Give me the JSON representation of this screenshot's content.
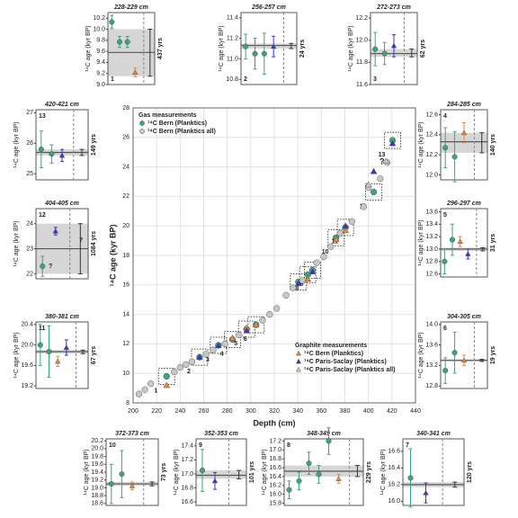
{
  "chart_data": [
    {
      "type": "scatter",
      "xlabel": "Depth (cm)",
      "ylabel": "¹⁴C age (kyr BP)",
      "xlim": [
        200,
        440
      ],
      "ylim": [
        8,
        28
      ],
      "xticks": [
        200,
        220,
        240,
        260,
        280,
        300,
        320,
        340,
        360,
        380,
        400,
        420,
        440
      ],
      "yticks": [
        8,
        10,
        12,
        14,
        16,
        18,
        20,
        22,
        24,
        26,
        28
      ],
      "grid": true,
      "legend_titles": {
        "gas": "Gas measurements",
        "graphite": "Graphite measurements"
      },
      "annotations": [
        "?"
      ],
      "series": [
        {
          "name": "¹⁴C Bern (Planktics)",
          "group": "gas",
          "marker": "circle",
          "color": "#3aa57a",
          "x": [
            228.5,
            256.5,
            272.5,
            284.5,
            296.5,
            304.5,
            340.5,
            348.5,
            352.5,
            372.5,
            380.5,
            404.5,
            420.5
          ],
          "y": [
            9.8,
            11.1,
            11.9,
            12.3,
            13.0,
            13.3,
            16.2,
            16.7,
            17.0,
            19.2,
            19.9,
            22.3,
            25.8
          ],
          "point_labels": [
            "1",
            "2",
            "3",
            "4",
            "5",
            "6",
            "7",
            "8",
            "9",
            "10",
            "11",
            "12",
            "13"
          ]
        },
        {
          "name": "¹⁴C Bern (Planktics all)",
          "group": "gas",
          "marker": "circle",
          "color": "#c8c8c8",
          "x": [
            205,
            210,
            215,
            235,
            240,
            245,
            250,
            262,
            268,
            278,
            290,
            310,
            316,
            322,
            330,
            336,
            344,
            356,
            362,
            368,
            376,
            386,
            396,
            400,
            410,
            416
          ],
          "y": [
            8.6,
            8.9,
            9.3,
            10.1,
            10.4,
            10.6,
            10.8,
            11.3,
            11.6,
            12.0,
            12.6,
            13.6,
            14.0,
            14.4,
            15.3,
            15.8,
            16.3,
            17.5,
            17.9,
            18.6,
            19.5,
            20.3,
            21.3,
            22.6,
            23.2,
            24.3
          ]
        },
        {
          "name": "¹⁴C Bern (Planktics)",
          "group": "graphite",
          "marker": "triangle",
          "color": "#e8883a",
          "x": [
            228.5,
            284.5,
            296.5,
            304.5,
            348.5,
            372.5,
            380.5
          ],
          "y": [
            9.2,
            12.4,
            13.1,
            13.3,
            16.4,
            19.1,
            19.7
          ]
        },
        {
          "name": "¹⁴C Paris-Saclay (Planktics)",
          "group": "graphite",
          "marker": "triangle",
          "color": "#3535d0",
          "x": [
            256.5,
            272.5,
            296.5,
            340.5,
            352.5,
            380.5,
            404.5,
            420.5
          ],
          "y": [
            11.1,
            11.9,
            12.9,
            16.1,
            16.9,
            20.0,
            23.7,
            25.6
          ]
        },
        {
          "name": "¹⁴C Paris-Saclay (Planktics all)",
          "group": "graphite",
          "marker": "triangle",
          "color": "#c8c8c8",
          "x": [
            400,
            415
          ],
          "y": [
            22.8,
            24.4
          ]
        }
      ]
    },
    {
      "type": "dotplot",
      "title": "228-229 cm",
      "number": "1",
      "ylabel": "¹⁴C age (kyr BP)",
      "span_label": "437 yrs",
      "ylim": [
        9.0,
        10.3
      ],
      "yticks": [
        {
          "value": 9.0,
          "label": "9.0"
        },
        9.2,
        9.4,
        9.6,
        9.8,
        {
          "value": 10.0,
          "label": "10.0"
        },
        10.2
      ],
      "band": [
        9.15,
        10.0
      ],
      "mean": 9.58,
      "points": [
        {
          "value": 10.13,
          "error": 0.12,
          "color": "#3aa57a",
          "marker": "circle"
        },
        {
          "value": 9.77,
          "error": 0.1,
          "color": "#3aa57a",
          "marker": "circle"
        },
        {
          "value": 9.77,
          "error": 0.1,
          "color": "#3aa57a",
          "marker": "circle"
        },
        {
          "value": 9.22,
          "error": 0.08,
          "color": "#e8883a",
          "marker": "triangle"
        }
      ]
    },
    {
      "type": "dotplot",
      "title": "256-257 cm",
      "number": "2",
      "ylabel": "¹⁴C age (kyr BP)",
      "span_label": "24 yrs",
      "ylim": [
        10.75,
        11.45
      ],
      "yticks": [
        10.8,
        {
          "value": 11.0,
          "label": "11.0"
        },
        11.2,
        11.4
      ],
      "band": [
        11.1,
        11.15
      ],
      "mean": 11.13,
      "points": [
        {
          "value": 11.12,
          "error": 0.12,
          "color": "#3aa57a",
          "marker": "circle"
        },
        {
          "value": 11.05,
          "error": 0.15,
          "color": "#3aa57a",
          "marker": "circle"
        },
        {
          "value": 11.05,
          "error": 0.2,
          "color": "#3aa57a",
          "marker": "circle"
        },
        {
          "value": 11.12,
          "error": 0.1,
          "color": "#3535d0",
          "marker": "triangle"
        }
      ]
    },
    {
      "type": "dotplot",
      "title": "272-273 cm",
      "number": "3",
      "ylabel": "¹⁴C age (kyr BP)",
      "span_label": "62 yrs",
      "ylim": [
        11.6,
        12.25
      ],
      "yticks": [
        11.6,
        11.8,
        {
          "value": 12.0,
          "label": "12.0"
        },
        12.2
      ],
      "band": [
        11.85,
        11.92
      ],
      "mean": 11.88,
      "points": [
        {
          "value": 11.92,
          "error": 0.15,
          "color": "#3aa57a",
          "marker": "circle"
        },
        {
          "value": 11.88,
          "error": 0.1,
          "color": "#3aa57a",
          "marker": "circle"
        },
        {
          "value": 11.95,
          "error": 0.1,
          "color": "#3535d0",
          "marker": "triangle"
        }
      ]
    },
    {
      "type": "dotplot",
      "title": "284-285 cm",
      "number": "4",
      "ylabel": "¹⁴C age (kyr BP)",
      "span_label": "140 yrs",
      "ylim": [
        11.95,
        12.65
      ],
      "yticks": [
        {
          "value": 12.0,
          "label": "12.0"
        },
        12.2,
        12.4,
        12.6
      ],
      "band": [
        12.22,
        12.42
      ],
      "mean": 12.33,
      "points": [
        {
          "value": 12.27,
          "error": 0.2,
          "color": "#3aa57a",
          "marker": "circle"
        },
        {
          "value": 12.18,
          "error": 0.25,
          "color": "#3aa57a",
          "marker": "circle"
        },
        {
          "value": 12.42,
          "error": 0.1,
          "color": "#e8883a",
          "marker": "triangle"
        }
      ]
    },
    {
      "type": "dotplot",
      "title": "296-297 cm",
      "number": "5",
      "ylabel": "¹⁴C age (kyr BP)",
      "span_label": "31 yrs",
      "ylim": [
        12.55,
        13.65
      ],
      "yticks": [
        12.6,
        12.8,
        {
          "value": 13.0,
          "label": "13.0"
        },
        13.2,
        13.4,
        13.6
      ],
      "band": [
        12.97,
        13.02
      ],
      "mean": 13.0,
      "points": [
        {
          "value": 12.8,
          "error": 0.2,
          "color": "#3aa57a",
          "marker": "circle"
        },
        {
          "value": 13.15,
          "error": 0.25,
          "color": "#3aa57a",
          "marker": "circle"
        },
        {
          "value": 13.12,
          "error": 0.08,
          "color": "#e8883a",
          "marker": "triangle"
        },
        {
          "value": 12.92,
          "error": 0.08,
          "color": "#3535d0",
          "marker": "triangle"
        }
      ]
    },
    {
      "type": "dotplot",
      "title": "304-305 cm",
      "number": "6",
      "ylabel": "¹⁴C age (kyr BP)",
      "span_label": "19 yrs",
      "ylim": [
        12.75,
        14.05
      ],
      "yticks": [
        12.8,
        13.2,
        13.6,
        {
          "value": 14.0,
          "label": "14.0"
        }
      ],
      "band": [
        13.28,
        13.32
      ],
      "mean": 13.3,
      "points": [
        {
          "value": 13.1,
          "error": 0.25,
          "color": "#3aa57a",
          "marker": "circle"
        },
        {
          "value": 13.45,
          "error": 0.4,
          "color": "#3aa57a",
          "marker": "circle"
        },
        {
          "value": 13.3,
          "error": 0.1,
          "color": "#e8883a",
          "marker": "triangle"
        }
      ]
    },
    {
      "type": "dotplot",
      "title": "340-341 cm",
      "number": "7",
      "ylabel": "¹⁴C age (kyr BP)",
      "span_label": "120 yrs",
      "ylim": [
        15.95,
        16.75
      ],
      "yticks": [
        {
          "value": 16.0,
          "label": "16.0"
        },
        16.2,
        16.4,
        16.6
      ],
      "band": [
        16.17,
        16.23
      ],
      "mean": 16.2,
      "points": [
        {
          "value": 16.28,
          "error": 0.35,
          "color": "#3aa57a",
          "marker": "circle"
        },
        {
          "value": 16.1,
          "error": 0.12,
          "color": "#3535d0",
          "marker": "triangle"
        }
      ]
    },
    {
      "type": "dotplot",
      "title": "348-349 cm",
      "number": "8",
      "ylabel": "¹⁴C age (kyr BP)",
      "span_label": "229 yrs",
      "ylim": [
        15.75,
        17.25
      ],
      "yticks": [
        15.8,
        {
          "value": 16.0,
          "label": "16.0"
        },
        16.2,
        16.4,
        16.6,
        16.8,
        {
          "value": 17.0,
          "label": "17.0"
        },
        17.2
      ],
      "band": [
        16.4,
        16.65
      ],
      "mean": 16.52,
      "points": [
        {
          "value": 16.1,
          "error": 0.2,
          "color": "#3aa57a",
          "marker": "circle"
        },
        {
          "value": 16.3,
          "error": 0.2,
          "color": "#3aa57a",
          "marker": "circle"
        },
        {
          "value": 16.7,
          "error": 0.25,
          "color": "#3aa57a",
          "marker": "circle"
        },
        {
          "value": 16.45,
          "error": 0.2,
          "color": "#3aa57a",
          "marker": "circle"
        },
        {
          "value": 17.2,
          "error": 0.3,
          "color": "#3aa57a",
          "marker": "circle"
        },
        {
          "value": 16.35,
          "error": 0.1,
          "color": "#e8883a",
          "marker": "triangle"
        }
      ]
    },
    {
      "type": "dotplot",
      "title": "352-353 cm",
      "number": "9",
      "ylabel": "¹⁴C age (kyr BP)",
      "span_label": "101 yrs",
      "ylim": [
        16.55,
        17.5
      ],
      "yticks": [
        16.6,
        16.8,
        {
          "value": 17.0,
          "label": "17.0"
        },
        17.2,
        17.4
      ],
      "band": [
        16.93,
        17.05
      ],
      "mean": 16.98,
      "points": [
        {
          "value": 17.05,
          "error": 0.3,
          "color": "#3aa57a",
          "marker": "circle"
        },
        {
          "value": 16.9,
          "error": 0.12,
          "color": "#3535d0",
          "marker": "triangle"
        }
      ]
    },
    {
      "type": "dotplot",
      "title": "372-373 cm",
      "number": "10",
      "ylabel": "¹⁴C age (kyr BP)",
      "span_label": "73 yrs",
      "ylim": [
        18.55,
        20.25
      ],
      "yticks": [
        18.6,
        18.8,
        {
          "value": 19.0,
          "label": "19.0"
        },
        19.2,
        19.4,
        19.6,
        19.8,
        {
          "value": 20.0,
          "label": "20.0"
        },
        20.2
      ],
      "band": [
        19.05,
        19.15
      ],
      "mean": 19.1,
      "points": [
        {
          "value": 19.1,
          "error": 0.5,
          "color": "#3aa57a",
          "marker": "circle"
        },
        {
          "value": 19.35,
          "error": 0.6,
          "color": "#3aa57a",
          "marker": "circle"
        },
        {
          "value": 19.05,
          "error": 0.1,
          "color": "#e8883a",
          "marker": "triangle"
        }
      ]
    },
    {
      "type": "dotplot",
      "title": "380-381 cm",
      "number": "11",
      "ylabel": "¹⁴C age (kyr BP)",
      "span_label": "67 yrs",
      "ylim": [
        19.15,
        20.45
      ],
      "yticks": [
        19.2,
        19.6,
        {
          "value": 20.0,
          "label": "20.0"
        },
        20.4
      ],
      "band": [
        19.83,
        19.9
      ],
      "mean": 19.87,
      "points": [
        {
          "value": 20.0,
          "error": 0.4,
          "color": "#3aa57a",
          "marker": "circle"
        },
        {
          "value": 19.87,
          "error": 0.5,
          "color": "#3aa57a",
          "marker": "circle"
        },
        {
          "value": 19.68,
          "error": 0.1,
          "color": "#e8883a",
          "marker": "triangle"
        },
        {
          "value": 19.95,
          "error": 0.15,
          "color": "#3535d0",
          "marker": "triangle"
        }
      ]
    },
    {
      "type": "dotplot",
      "title": "404-405 cm",
      "number": "12",
      "ylabel": "¹⁴C age (kyr BP)",
      "span_label": "1084 yrs",
      "ylim": [
        21.8,
        24.6
      ],
      "yticks": [
        22,
        23,
        24
      ],
      "band": [
        22.0,
        24.0
      ],
      "mean": 23.0,
      "annotations": [
        "?",
        "?"
      ],
      "points": [
        {
          "value": 22.3,
          "error": 0.4,
          "color": "#3aa57a",
          "marker": "circle"
        },
        {
          "value": 23.7,
          "error": 0.15,
          "color": "#3535d0",
          "marker": "triangle"
        }
      ]
    },
    {
      "type": "dotplot",
      "title": "420-421 cm",
      "number": "13",
      "ylabel": "¹⁴C age (kyr BP)",
      "span_label": "149 yrs",
      "ylim": [
        24.8,
        27.1
      ],
      "yticks": [
        25,
        26,
        27
      ],
      "band": [
        25.6,
        25.8
      ],
      "mean": 25.7,
      "points": [
        {
          "value": 25.8,
          "error": 0.6,
          "color": "#3aa57a",
          "marker": "circle"
        },
        {
          "value": 25.65,
          "error": 0.3,
          "color": "#3aa57a",
          "marker": "circle"
        },
        {
          "value": 25.6,
          "error": 0.2,
          "color": "#3535d0",
          "marker": "triangle"
        }
      ]
    }
  ]
}
